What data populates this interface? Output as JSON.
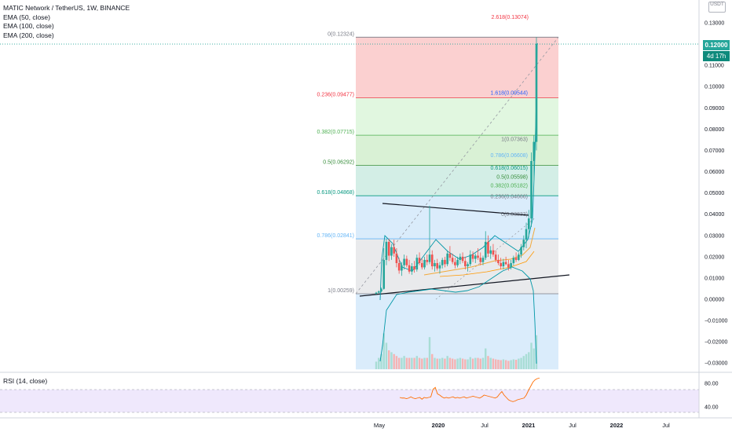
{
  "header": {
    "symbol_line": "MATIC Network / TetherUS, 1W, BINANCE",
    "ema_labels": [
      "EMA (50, close)",
      "EMA (100, close)",
      "EMA (200, close)"
    ],
    "rsi_label": "RSI (14, close)",
    "currency_badge": "USDT",
    "last_price_tag": "0.12000",
    "countdown_tag": "4d 17h"
  },
  "chart_data": {
    "type": "candlestick",
    "symbol": "MATICUSDT",
    "interval": "1W",
    "exchange": "BINANCE",
    "x_ticks": [
      "May",
      "2020",
      "Jul",
      "2021",
      "Jul",
      "2022",
      "Jul"
    ],
    "y_ticks": [
      "0.13000",
      "0.12000",
      "0.11000",
      "0.10000",
      "0.09000",
      "0.08000",
      "0.07000",
      "0.06000",
      "0.05000",
      "0.04000",
      "0.03000",
      "0.02000",
      "0.01000",
      "0.00000",
      "−0.01000",
      "−0.02000",
      "−0.03000"
    ],
    "ylim": [
      -0.0335,
      0.1365
    ],
    "last_price": 0.12,
    "fib_retracement": [
      {
        "label": "0(0.12324)",
        "value": 0.12324,
        "color": "#787b86"
      },
      {
        "label": "0.236(0.09477)",
        "value": 0.09477,
        "color": "#f23645"
      },
      {
        "label": "0.382(0.07715)",
        "value": 0.07715,
        "color": "#4caf50"
      },
      {
        "label": "0.5(0.06292)",
        "value": 0.06292,
        "color": "#388e3c"
      },
      {
        "label": "0.618(0.04868)",
        "value": 0.04868,
        "color": "#089981"
      },
      {
        "label": "0.786(0.02841)",
        "value": 0.02841,
        "color": "#64b5f6"
      },
      {
        "label": "1(0.00259)",
        "value": 0.00259,
        "color": "#787b86"
      }
    ],
    "fib_extension": [
      {
        "label": "2.618(0.13074)",
        "value": 0.13074,
        "color": "#f23645"
      },
      {
        "label": "1.618(0.09544)",
        "value": 0.09544,
        "color": "#2962ff"
      },
      {
        "label": "1(0.07363)",
        "value": 0.07363,
        "color": "#787b86"
      },
      {
        "label": "0.786(0.06608)",
        "value": 0.06608,
        "color": "#64b5f6"
      },
      {
        "label": "0.618(0.06015)",
        "value": 0.06015,
        "color": "#089981"
      },
      {
        "label": "0.5(0.05598)",
        "value": 0.05598,
        "color": "#388e3c"
      },
      {
        "label": "0.382(0.05182)",
        "value": 0.05182,
        "color": "#4caf50"
      },
      {
        "label": "0.236(0.04666)",
        "value": 0.04666,
        "color": "#787b86"
      },
      {
        "label": "0(0.03833)",
        "value": 0.03833,
        "color": "#787b86"
      }
    ],
    "candles": [
      {
        "o": 0.0026,
        "h": 0.0035,
        "l": 0.0023,
        "c": 0.0031
      },
      {
        "o": 0.0031,
        "h": 0.0042,
        "l": 0.0028,
        "c": 0.0037
      },
      {
        "o": 0.0037,
        "h": 0.0055,
        "l": 0.0032,
        "c": 0.0049
      },
      {
        "o": 0.0049,
        "h": 0.024,
        "l": 0.0045,
        "c": 0.0185
      },
      {
        "o": 0.0185,
        "h": 0.0285,
        "l": 0.016,
        "c": 0.027
      },
      {
        "o": 0.027,
        "h": 0.0285,
        "l": 0.018,
        "c": 0.0205
      },
      {
        "o": 0.0205,
        "h": 0.026,
        "l": 0.0185,
        "c": 0.0245
      },
      {
        "o": 0.0245,
        "h": 0.028,
        "l": 0.02,
        "c": 0.0215
      },
      {
        "o": 0.0215,
        "h": 0.024,
        "l": 0.015,
        "c": 0.017
      },
      {
        "o": 0.017,
        "h": 0.0195,
        "l": 0.012,
        "c": 0.0135
      },
      {
        "o": 0.0135,
        "h": 0.0175,
        "l": 0.011,
        "c": 0.016
      },
      {
        "o": 0.016,
        "h": 0.021,
        "l": 0.014,
        "c": 0.019
      },
      {
        "o": 0.019,
        "h": 0.0205,
        "l": 0.015,
        "c": 0.016
      },
      {
        "o": 0.016,
        "h": 0.0185,
        "l": 0.012,
        "c": 0.013
      },
      {
        "o": 0.013,
        "h": 0.017,
        "l": 0.0115,
        "c": 0.0155
      },
      {
        "o": 0.0155,
        "h": 0.018,
        "l": 0.0125,
        "c": 0.014
      },
      {
        "o": 0.014,
        "h": 0.021,
        "l": 0.013,
        "c": 0.0195
      },
      {
        "o": 0.0195,
        "h": 0.022,
        "l": 0.016,
        "c": 0.017
      },
      {
        "o": 0.017,
        "h": 0.019,
        "l": 0.014,
        "c": 0.015
      },
      {
        "o": 0.015,
        "h": 0.02,
        "l": 0.014,
        "c": 0.0185
      },
      {
        "o": 0.0185,
        "h": 0.021,
        "l": 0.016,
        "c": 0.0175
      },
      {
        "o": 0.0175,
        "h": 0.044,
        "l": 0.0165,
        "c": 0.021
      },
      {
        "o": 0.021,
        "h": 0.023,
        "l": 0.014,
        "c": 0.0155
      },
      {
        "o": 0.0155,
        "h": 0.0185,
        "l": 0.013,
        "c": 0.017
      },
      {
        "o": 0.017,
        "h": 0.019,
        "l": 0.0135,
        "c": 0.0145
      },
      {
        "o": 0.0145,
        "h": 0.0175,
        "l": 0.012,
        "c": 0.016
      },
      {
        "o": 0.016,
        "h": 0.0195,
        "l": 0.0145,
        "c": 0.0185
      },
      {
        "o": 0.0185,
        "h": 0.02,
        "l": 0.015,
        "c": 0.0165
      },
      {
        "o": 0.0165,
        "h": 0.023,
        "l": 0.0155,
        "c": 0.0215
      },
      {
        "o": 0.0215,
        "h": 0.025,
        "l": 0.018,
        "c": 0.0195
      },
      {
        "o": 0.0195,
        "h": 0.0215,
        "l": 0.0165,
        "c": 0.0175
      },
      {
        "o": 0.0175,
        "h": 0.0195,
        "l": 0.0145,
        "c": 0.016
      },
      {
        "o": 0.016,
        "h": 0.02,
        "l": 0.015,
        "c": 0.0185
      },
      {
        "o": 0.0185,
        "h": 0.0215,
        "l": 0.0165,
        "c": 0.02
      },
      {
        "o": 0.02,
        "h": 0.022,
        "l": 0.017,
        "c": 0.018
      },
      {
        "o": 0.018,
        "h": 0.02,
        "l": 0.014,
        "c": 0.0155
      },
      {
        "o": 0.0155,
        "h": 0.0175,
        "l": 0.013,
        "c": 0.0165
      },
      {
        "o": 0.0165,
        "h": 0.023,
        "l": 0.0155,
        "c": 0.021
      },
      {
        "o": 0.021,
        "h": 0.0225,
        "l": 0.0175,
        "c": 0.019
      },
      {
        "o": 0.019,
        "h": 0.0215,
        "l": 0.017,
        "c": 0.0205
      },
      {
        "o": 0.0205,
        "h": 0.024,
        "l": 0.0185,
        "c": 0.0195
      },
      {
        "o": 0.0195,
        "h": 0.022,
        "l": 0.016,
        "c": 0.0175
      },
      {
        "o": 0.0175,
        "h": 0.0205,
        "l": 0.016,
        "c": 0.0195
      },
      {
        "o": 0.0195,
        "h": 0.032,
        "l": 0.0185,
        "c": 0.027
      },
      {
        "o": 0.027,
        "h": 0.03,
        "l": 0.02,
        "c": 0.0215
      },
      {
        "o": 0.0215,
        "h": 0.025,
        "l": 0.019,
        "c": 0.023
      },
      {
        "o": 0.023,
        "h": 0.026,
        "l": 0.02,
        "c": 0.021
      },
      {
        "o": 0.021,
        "h": 0.023,
        "l": 0.0175,
        "c": 0.0185
      },
      {
        "o": 0.0185,
        "h": 0.021,
        "l": 0.016,
        "c": 0.017
      },
      {
        "o": 0.017,
        "h": 0.0195,
        "l": 0.014,
        "c": 0.0155
      },
      {
        "o": 0.0155,
        "h": 0.019,
        "l": 0.014,
        "c": 0.0175
      },
      {
        "o": 0.0175,
        "h": 0.02,
        "l": 0.016,
        "c": 0.0165
      },
      {
        "o": 0.0165,
        "h": 0.0185,
        "l": 0.0135,
        "c": 0.015
      },
      {
        "o": 0.015,
        "h": 0.0185,
        "l": 0.014,
        "c": 0.017
      },
      {
        "o": 0.017,
        "h": 0.0205,
        "l": 0.016,
        "c": 0.0195
      },
      {
        "o": 0.0195,
        "h": 0.022,
        "l": 0.0175,
        "c": 0.0185
      },
      {
        "o": 0.0185,
        "h": 0.022,
        "l": 0.018,
        "c": 0.021
      },
      {
        "o": 0.021,
        "h": 0.026,
        "l": 0.0195,
        "c": 0.0245
      },
      {
        "o": 0.0245,
        "h": 0.03,
        "l": 0.023,
        "c": 0.028
      },
      {
        "o": 0.028,
        "h": 0.036,
        "l": 0.024,
        "c": 0.033
      },
      {
        "o": 0.033,
        "h": 0.042,
        "l": 0.029,
        "c": 0.038
      },
      {
        "o": 0.038,
        "h": 0.069,
        "l": 0.034,
        "c": 0.065
      },
      {
        "o": 0.065,
        "h": 0.077,
        "l": 0.056,
        "c": 0.074
      },
      {
        "o": 0.074,
        "h": 0.1232,
        "l": 0.07,
        "c": 0.12
      }
    ],
    "rsi": {
      "ylim": [
        30,
        90
      ],
      "ticks": [
        "80.00",
        "40.00"
      ],
      "overbought": 70,
      "oversold": 30
    }
  }
}
